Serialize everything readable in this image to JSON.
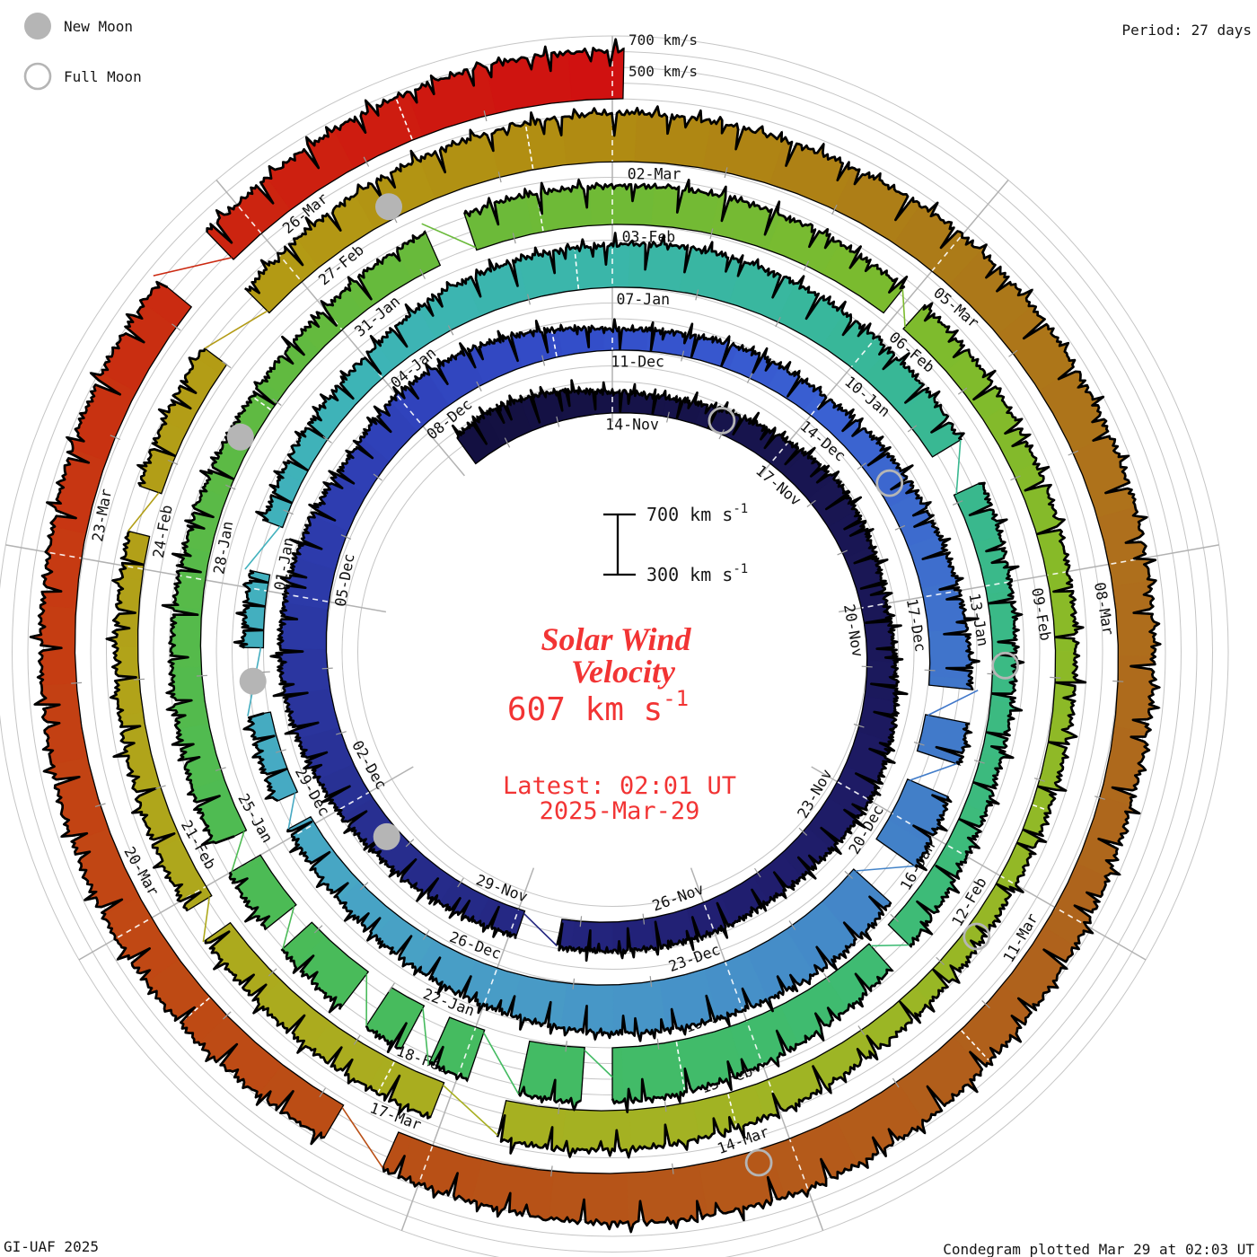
{
  "legend": {
    "new_moon": "New Moon",
    "full_moon": "Full Moon"
  },
  "header": {
    "period": "Period: 27 days"
  },
  "footer": {
    "credit": "GI-UAF 2025",
    "plotted": "Condegram plotted Mar 29 at 02:03 UT"
  },
  "outer_scale": {
    "line1": "700 km/s",
    "line2": "500 km/s"
  },
  "inner_scale": {
    "top_value": "700 km s",
    "top_sup": "-1",
    "bottom_value": "300 km s",
    "bottom_sup": "-1"
  },
  "center": {
    "title_line1": "Solar Wind",
    "title_line2": "Velocity",
    "value": "607 km s",
    "value_sup": "-1",
    "latest_line1": "Latest: 02:01 UT",
    "latest_line2": "2025-Mar-29",
    "accent_color": "#f23434"
  },
  "chart_data": {
    "type": "area",
    "subtype": "spiral-condegram",
    "title": "Solar Wind Velocity",
    "period_days": 27,
    "direction": "clockwise-from-top",
    "latest": {
      "value_kms": 607,
      "time_ut": "02:01 UT",
      "date": "2025-Mar-29"
    },
    "velocity_axis": {
      "baseline_kms": 300,
      "max_kms": 700,
      "gridline_step_kms": 100
    },
    "t_start": -2.7,
    "t_end": 135.083,
    "date_labels": [
      "14-Nov",
      "17-Nov",
      "20-Nov",
      "23-Nov",
      "26-Nov",
      "29-Nov",
      "02-Dec",
      "05-Dec",
      "08-Dec",
      "11-Dec",
      "14-Dec",
      "17-Dec",
      "20-Dec",
      "23-Dec",
      "26-Dec",
      "29-Dec",
      "01-Jan",
      "04-Jan",
      "07-Jan",
      "10-Jan",
      "13-Jan",
      "16-Jan",
      "19-Jan",
      "22-Jan",
      "25-Jan",
      "28-Jan",
      "31-Jan",
      "03-Feb",
      "06-Feb",
      "09-Feb",
      "12-Feb",
      "15-Feb",
      "18-Feb",
      "21-Feb",
      "24-Feb",
      "27-Feb",
      "02-Mar",
      "05-Mar",
      "08-Mar",
      "11-Mar",
      "14-Mar",
      "17-Mar",
      "20-Mar",
      "23-Mar",
      "26-Mar"
    ],
    "daily_velocity_kms": {
      "t_start_day": -3,
      "values": [
        500,
        530,
        490,
        430,
        420,
        450,
        480,
        520,
        490,
        460,
        480,
        520,
        540,
        510,
        490,
        500,
        490,
        480,
        470,
        480,
        500,
        530,
        570,
        600,
        580,
        550,
        520,
        560,
        540,
        490,
        430,
        440,
        460,
        450,
        480,
        500,
        530,
        560,
        580,
        600,
        620,
        640,
        630,
        620,
        590,
        550,
        510,
        480,
        460,
        440,
        430,
        420,
        430,
        450,
        470,
        540,
        560,
        570,
        590,
        570,
        545,
        520,
        490,
        460,
        440,
        430,
        450,
        490,
        540,
        600,
        640,
        650,
        630,
        600,
        560,
        530,
        510,
        490,
        470,
        455,
        450,
        470,
        520,
        550,
        545,
        550,
        530,
        500,
        480,
        460,
        440,
        425,
        415,
        410,
        430,
        460,
        520,
        545,
        555,
        540,
        520,
        500,
        480,
        460,
        445,
        430,
        450,
        480,
        520,
        560,
        590,
        610,
        600,
        590,
        600,
        580,
        560,
        540,
        520,
        500,
        530,
        560,
        610,
        640,
        630,
        600,
        560,
        540,
        550,
        560,
        540,
        520,
        510,
        540,
        560,
        540,
        580,
        610,
        607
      ]
    },
    "gaps": [
      [
        14.3,
        14.9
      ],
      [
        34.2,
        34.6
      ],
      [
        35.1,
        35.5
      ],
      [
        36.4,
        36.9
      ],
      [
        45.1,
        45.45
      ],
      [
        46.5,
        47.3
      ],
      [
        48.2,
        48.8
      ],
      [
        58.4,
        58.9
      ],
      [
        64.1,
        64.4
      ],
      [
        67.5,
        67.8
      ],
      [
        68.4,
        68.9
      ],
      [
        69.3,
        69.6
      ],
      [
        70.0,
        70.3
      ],
      [
        71.1,
        71.35
      ],
      [
        72.0,
        72.3
      ],
      [
        79.2,
        79.6
      ],
      [
        83.9,
        84.15
      ],
      [
        95.5,
        96.1
      ],
      [
        98.6,
        98.9
      ],
      [
        102.3,
        102.7
      ],
      [
        104.0,
        104.6
      ],
      [
        123.3,
        123.8
      ],
      [
        131.2,
        131.7
      ]
    ],
    "micro_gaps": [
      26.2,
      53.6,
      62.25,
      66.8,
      76.9,
      80.3,
      89.25,
      93.4,
      96.6,
      107.3,
      118.3,
      125.2,
      133.4
    ],
    "moons": {
      "new_t_days": [
        17.3,
        46.9,
        76.5,
        106.0
      ],
      "full_t_days": [
        1.9,
        31.4,
        60.9,
        90.6,
        120.3
      ]
    },
    "color_stops": [
      [
        -3,
        "#13103f"
      ],
      [
        6,
        "#1a1757"
      ],
      [
        12,
        "#211f72"
      ],
      [
        18,
        "#283093"
      ],
      [
        24,
        "#3042bb"
      ],
      [
        27,
        "#3450cb"
      ],
      [
        30,
        "#3a60d2"
      ],
      [
        33,
        "#3f70cc"
      ],
      [
        36,
        "#4280c8"
      ],
      [
        39,
        "#4690c8"
      ],
      [
        42,
        "#489cc6"
      ],
      [
        45,
        "#47a8c4"
      ],
      [
        48,
        "#42b0be"
      ],
      [
        51,
        "#3db4b6"
      ],
      [
        54,
        "#3ab6a8"
      ],
      [
        57,
        "#38b798"
      ],
      [
        60,
        "#3ab989"
      ],
      [
        63,
        "#3dbb7a"
      ],
      [
        66,
        "#40bb6c"
      ],
      [
        69,
        "#45bb60"
      ],
      [
        72,
        "#4dbb54"
      ],
      [
        75,
        "#57ba49"
      ],
      [
        78,
        "#64ba3e"
      ],
      [
        81,
        "#70ba36"
      ],
      [
        84,
        "#7cbb2e"
      ],
      [
        87,
        "#88ba28"
      ],
      [
        90,
        "#94b826"
      ],
      [
        93,
        "#a0b424"
      ],
      [
        96,
        "#a8ae20"
      ],
      [
        99,
        "#aea81c"
      ],
      [
        102,
        "#b2a018"
      ],
      [
        105,
        "#b39a14"
      ],
      [
        108,
        "#b08a12"
      ],
      [
        111,
        "#ac7a18"
      ],
      [
        114,
        "#ae6f1c"
      ],
      [
        117,
        "#ae641c"
      ],
      [
        120,
        "#b45a1a"
      ],
      [
        123,
        "#b85016"
      ],
      [
        126,
        "#c04814"
      ],
      [
        129,
        "#c63a12"
      ],
      [
        132,
        "#cc2410"
      ],
      [
        135,
        "#d01010"
      ]
    ],
    "colors": {
      "grid": "#c5c5c5",
      "spoke": "#b2b2b2",
      "tick": "#999999",
      "moon": "#b5b5b5",
      "outline": "#000000",
      "background": "#ffffff"
    }
  }
}
